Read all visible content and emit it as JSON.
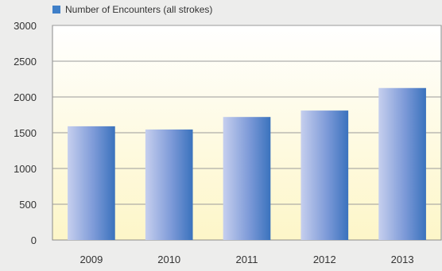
{
  "chart_data": {
    "type": "bar",
    "categories": [
      "2009",
      "2010",
      "2011",
      "2012",
      "2013"
    ],
    "series": [
      {
        "name": "Number of Encounters (all strokes)",
        "values": [
          1590,
          1545,
          1720,
          1810,
          2125
        ]
      }
    ],
    "title": "",
    "xlabel": "",
    "ylabel": "",
    "ylim": [
      0,
      3000
    ],
    "yticks": [
      "0",
      "500",
      "1000",
      "1500",
      "2000",
      "2500",
      "3000"
    ],
    "grid": true,
    "legend_position": "top-left",
    "colors": {
      "bar_dark": "#3a72bd",
      "bar_light": "#c6cfee",
      "legend_swatch": "#3f7fc8",
      "plot_top": "#ffffff",
      "plot_bottom": "#fdf6c8",
      "background": "#ededec",
      "gridline": "#9a9a9a"
    }
  }
}
